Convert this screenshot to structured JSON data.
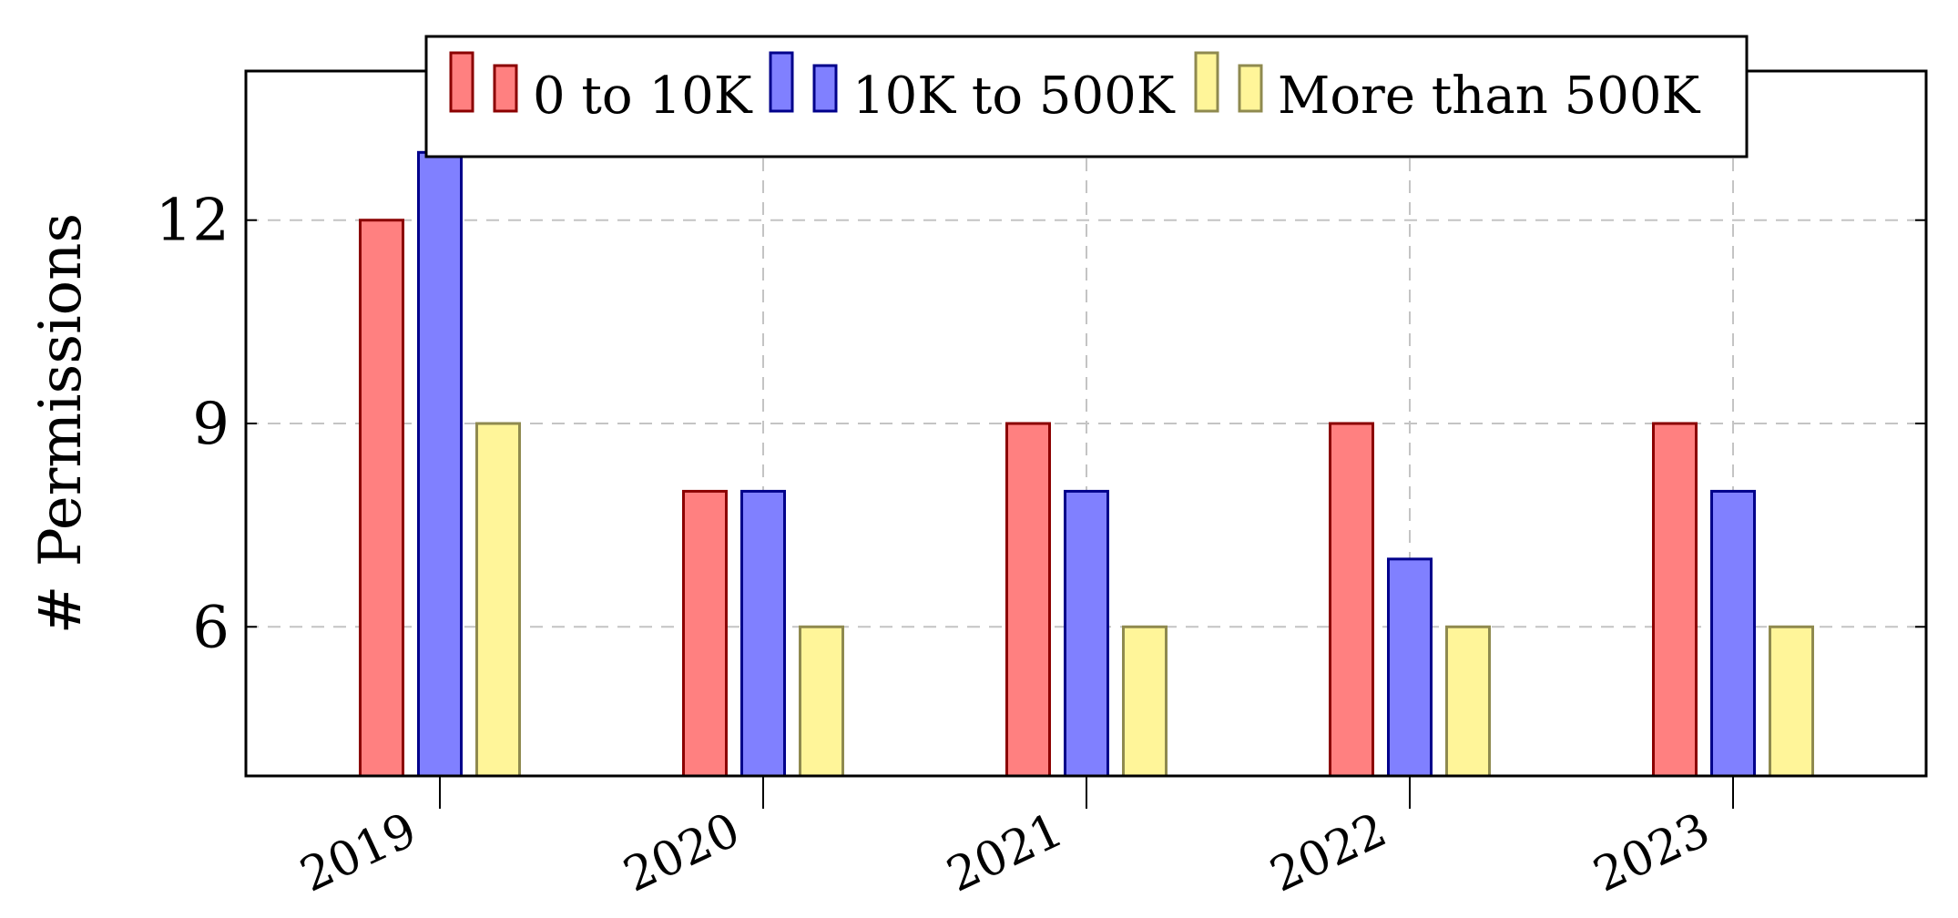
{
  "chart_data": {
    "type": "bar",
    "title": "",
    "xlabel": "",
    "ylabel": "# Permissions",
    "categories": [
      "2019",
      "2020",
      "2021",
      "2022",
      "2023"
    ],
    "series": [
      {
        "name": "0 to 10K",
        "values": [
          12,
          8,
          9,
          9,
          9
        ],
        "fill": "#ff8080",
        "stroke": "#8b0000"
      },
      {
        "name": "10K to 500K",
        "values": [
          13,
          8,
          8,
          7,
          8
        ],
        "fill": "#8080ff",
        "stroke": "#00008b"
      },
      {
        "name": "More than 500K",
        "values": [
          9,
          6,
          6,
          6,
          6
        ],
        "fill": "#fff599",
        "stroke": "#8f8a4f"
      }
    ],
    "yticks": [
      6,
      9,
      12
    ],
    "ylim": [
      3.8,
      14.2
    ],
    "grid": true,
    "legend_position": "top-center"
  }
}
